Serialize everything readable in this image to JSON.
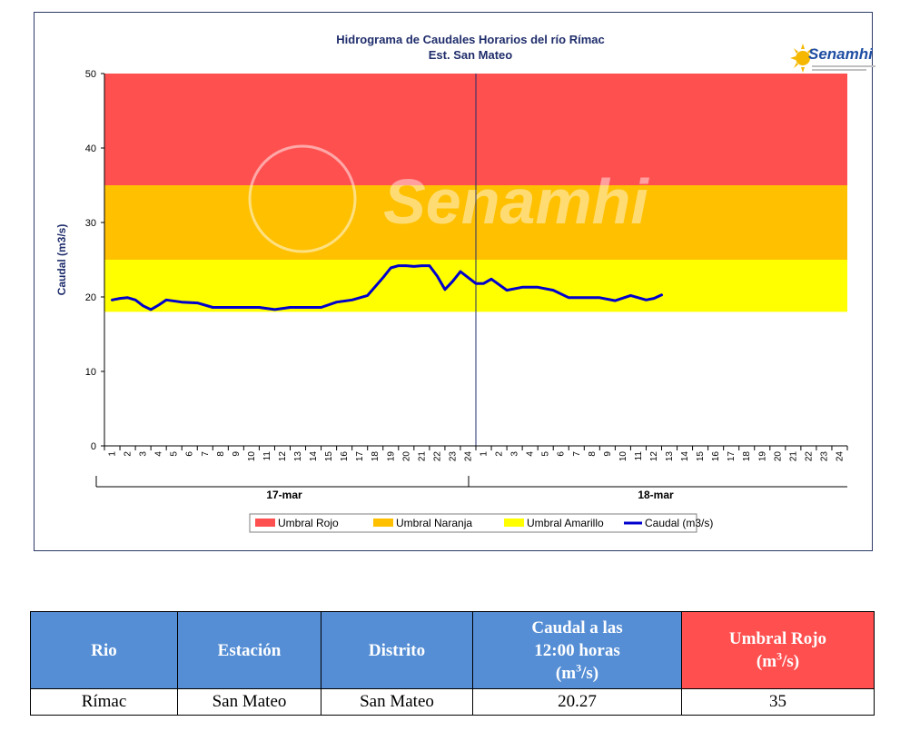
{
  "chart_data": {
    "type": "line",
    "title": "Hidrograma de Caudales Horarios del río Rímac",
    "subtitle": "Est. San Mateo",
    "ylabel": "Caudal  (m3/s)",
    "ylim": [
      0,
      50
    ],
    "yticks": [
      "0",
      "10",
      "20",
      "30",
      "40",
      "50"
    ],
    "x_tick_labels": [
      "1",
      "2",
      "3",
      "4",
      "5",
      "6",
      "7",
      "8",
      "9",
      "10",
      "11",
      "12",
      "13",
      "14",
      "15",
      "16",
      "17",
      "18",
      "19",
      "20",
      "21",
      "22",
      "23",
      "24",
      "1",
      "2",
      "3",
      "4",
      "5",
      "6",
      "7",
      "8",
      "9",
      "10",
      "11",
      "12",
      "13",
      "14",
      "15",
      "16",
      "17",
      "18",
      "19",
      "20",
      "21",
      "22",
      "23",
      "24"
    ],
    "day_groups": [
      "17-mar",
      "18-mar"
    ],
    "grid": false,
    "legend_position": "bottom",
    "thresholds": [
      {
        "name": "Umbral Rojo",
        "from": 35,
        "to": 50,
        "color": "#ff5050"
      },
      {
        "name": "Umbral Naranja",
        "from": 25,
        "to": 35,
        "color": "#ffc000"
      },
      {
        "name": "Umbral Amarillo",
        "from": 18,
        "to": 25,
        "color": "#ffff00"
      }
    ],
    "series": [
      {
        "name": "Caudal (m3/s)",
        "color": "#0000cc",
        "x": [
          0.5,
          1,
          1.5,
          2,
          2.5,
          3,
          3.5,
          4,
          5,
          6,
          7,
          8,
          9,
          10,
          11,
          12,
          13,
          14,
          15,
          16,
          17,
          18,
          18.5,
          19,
          19.5,
          20,
          20.5,
          21,
          21.5,
          22,
          22.5,
          23,
          23.5,
          24,
          24.5,
          25,
          26,
          27,
          28,
          29,
          30,
          31,
          32,
          33,
          34,
          35,
          35.5,
          36
        ],
        "values": [
          19.6,
          19.8,
          19.9,
          19.6,
          18.8,
          18.3,
          18.9,
          19.6,
          19.3,
          19.2,
          18.6,
          18.6,
          18.6,
          18.6,
          18.3,
          18.6,
          18.6,
          18.6,
          19.3,
          19.6,
          20.2,
          22.6,
          23.9,
          24.2,
          24.2,
          24.1,
          24.2,
          24.2,
          22.8,
          21.0,
          22.1,
          23.4,
          22.6,
          21.8,
          21.8,
          22.4,
          20.9,
          21.3,
          21.3,
          20.9,
          19.9,
          19.9,
          19.9,
          19.5,
          20.2,
          19.6,
          19.8,
          20.27
        ]
      }
    ],
    "marker_label": "",
    "colors": {
      "axis": "#000000",
      "title": "#1f2d6b",
      "line": "#0000cc",
      "watermark": "#ffffff"
    }
  },
  "watermark": {
    "text": "Senamhi"
  },
  "logo": {
    "text": "Senamhi"
  },
  "table": {
    "headers": [
      {
        "text": "Rio",
        "sup": "",
        "after": ""
      },
      {
        "text": "Estación",
        "sup": "",
        "after": ""
      },
      {
        "text": "Distrito",
        "sup": "",
        "after": ""
      },
      {
        "text": "Caudal a las\n12:00 horas\n(m",
        "sup": "3",
        "after": "/s)"
      },
      {
        "text": "Umbral Rojo\n(m",
        "sup": "3",
        "after": "/s)"
      }
    ],
    "row": [
      "Rímac",
      "San Mateo",
      "San Mateo",
      "20.27",
      "35"
    ]
  }
}
